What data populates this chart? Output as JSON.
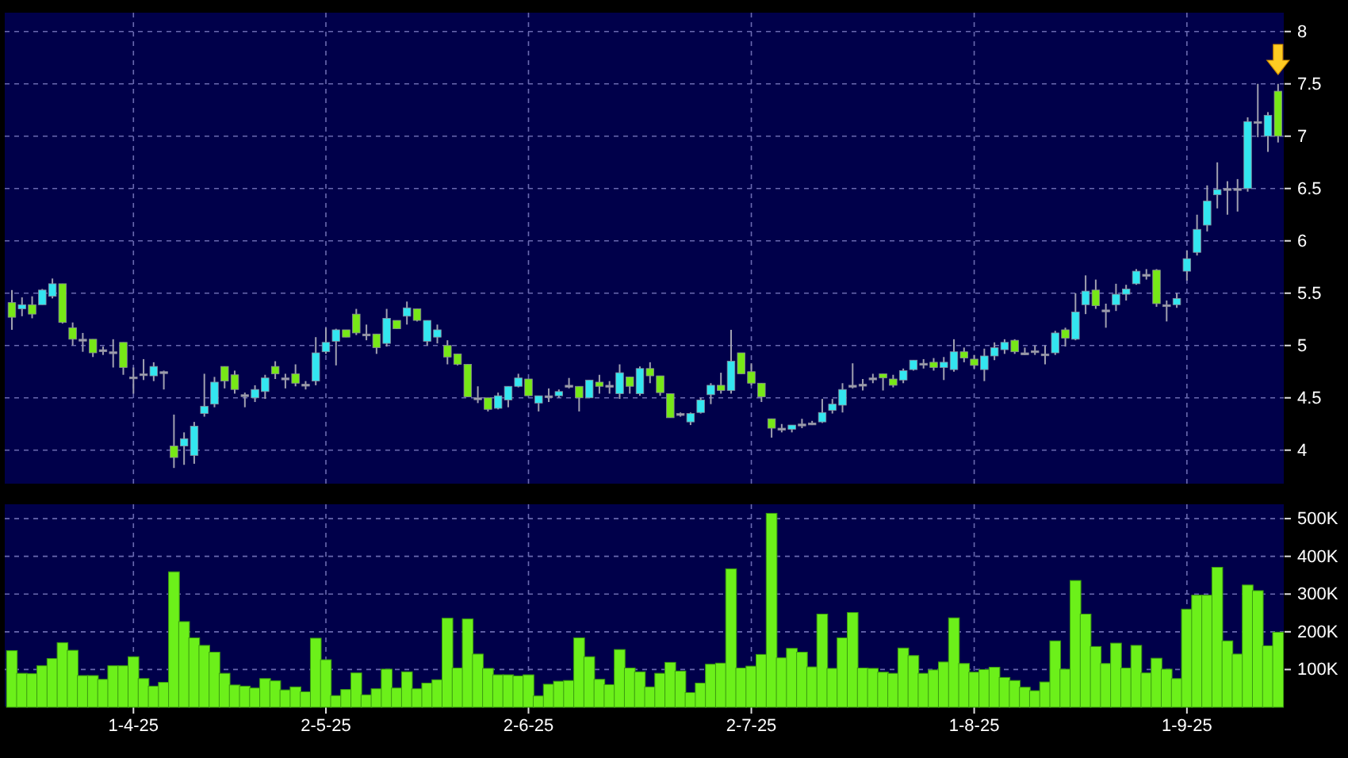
{
  "chart_data": [
    {
      "type": "candlestick",
      "categories": [
        null,
        null,
        null,
        null,
        null,
        null,
        null,
        null,
        null,
        null,
        null,
        null,
        null,
        null,
        null,
        null,
        null,
        null,
        null,
        null,
        null,
        null,
        null,
        null,
        null,
        null,
        null,
        null,
        null,
        null,
        null,
        null,
        null,
        null,
        null,
        null,
        null,
        null,
        null,
        null,
        null,
        null,
        null,
        null,
        null,
        null,
        null,
        null,
        null,
        null,
        null,
        null,
        null,
        null,
        null,
        null,
        null,
        null,
        null,
        null,
        null,
        null,
        null,
        null,
        null,
        null,
        null,
        null,
        null,
        null,
        null,
        null,
        null,
        null,
        null,
        null,
        null,
        null,
        null,
        null,
        null,
        null,
        null,
        null,
        null,
        null,
        null,
        null,
        null,
        null,
        null,
        null,
        null,
        null,
        null,
        null,
        null,
        null,
        null,
        null,
        null,
        null,
        null,
        null,
        null,
        null,
        null,
        null,
        null,
        null,
        null,
        null,
        null,
        null,
        null,
        null,
        null,
        null,
        null,
        null,
        null,
        null,
        null,
        null,
        null,
        null
      ],
      "ohlc": [
        [
          5.41,
          5.53,
          5.15,
          5.27
        ],
        [
          5.35,
          5.46,
          5.28,
          5.39
        ],
        [
          5.39,
          5.47,
          5.26,
          5.3
        ],
        [
          5.39,
          5.54,
          5.39,
          5.53
        ],
        [
          5.47,
          5.64,
          5.45,
          5.59
        ],
        [
          5.59,
          5.59,
          5.21,
          5.22
        ],
        [
          5.17,
          5.22,
          5.0,
          5.06
        ],
        [
          5.06,
          5.12,
          4.94,
          5.06
        ],
        [
          5.06,
          5.06,
          4.89,
          4.93
        ],
        [
          4.96,
          4.99,
          4.91,
          4.96
        ],
        [
          4.94,
          5.06,
          4.79,
          4.94
        ],
        [
          5.03,
          5.03,
          4.72,
          4.79
        ],
        [
          4.7,
          4.79,
          4.54,
          4.7
        ],
        [
          4.73,
          4.87,
          4.67,
          4.73
        ],
        [
          4.71,
          4.84,
          4.66,
          4.8
        ],
        [
          4.75,
          4.76,
          4.58,
          4.75
        ],
        [
          4.04,
          4.34,
          3.83,
          3.93
        ],
        [
          4.04,
          4.17,
          3.86,
          4.11
        ],
        [
          3.95,
          4.27,
          3.87,
          4.23
        ],
        [
          4.35,
          4.73,
          4.32,
          4.42
        ],
        [
          4.44,
          4.7,
          4.41,
          4.65
        ],
        [
          4.8,
          4.8,
          4.59,
          4.66
        ],
        [
          4.72,
          4.76,
          4.54,
          4.58
        ],
        [
          4.53,
          4.55,
          4.41,
          4.53
        ],
        [
          4.5,
          4.62,
          4.46,
          4.58
        ],
        [
          4.56,
          4.72,
          4.49,
          4.69
        ],
        [
          4.8,
          4.85,
          4.68,
          4.73
        ],
        [
          4.69,
          4.73,
          4.59,
          4.69
        ],
        [
          4.73,
          4.82,
          4.61,
          4.64
        ],
        [
          4.63,
          4.66,
          4.58,
          4.63
        ],
        [
          4.66,
          5.08,
          4.62,
          4.93
        ],
        [
          4.94,
          5.17,
          4.92,
          5.03
        ],
        [
          5.04,
          5.16,
          4.81,
          5.15
        ],
        [
          5.15,
          5.15,
          5.08,
          5.08
        ],
        [
          5.3,
          5.35,
          5.1,
          5.12
        ],
        [
          5.11,
          5.2,
          5.05,
          5.11
        ],
        [
          5.11,
          5.11,
          4.92,
          4.98
        ],
        [
          5.02,
          5.35,
          4.99,
          5.26
        ],
        [
          5.24,
          5.24,
          5.16,
          5.16
        ],
        [
          5.28,
          5.42,
          5.2,
          5.36
        ],
        [
          5.35,
          5.35,
          5.23,
          5.24
        ],
        [
          5.04,
          5.24,
          5.0,
          5.24
        ],
        [
          5.08,
          5.2,
          5.02,
          5.15
        ],
        [
          5.0,
          5.05,
          4.82,
          4.89
        ],
        [
          4.92,
          4.92,
          4.81,
          4.82
        ],
        [
          4.82,
          4.82,
          4.51,
          4.51
        ],
        [
          4.5,
          4.61,
          4.45,
          4.5
        ],
        [
          4.5,
          4.5,
          4.37,
          4.39
        ],
        [
          4.4,
          4.55,
          4.39,
          4.52
        ],
        [
          4.48,
          4.61,
          4.41,
          4.61
        ],
        [
          4.61,
          4.73,
          4.6,
          4.69
        ],
        [
          4.68,
          4.68,
          4.52,
          4.52
        ],
        [
          4.45,
          4.52,
          4.37,
          4.52
        ],
        [
          4.52,
          4.59,
          4.46,
          4.52
        ],
        [
          4.52,
          4.58,
          4.5,
          4.56
        ],
        [
          4.62,
          4.69,
          4.59,
          4.62
        ],
        [
          4.61,
          4.61,
          4.37,
          4.5
        ],
        [
          4.5,
          4.67,
          4.5,
          4.67
        ],
        [
          4.65,
          4.72,
          4.54,
          4.61
        ],
        [
          4.62,
          4.66,
          4.54,
          4.62
        ],
        [
          4.54,
          4.82,
          4.49,
          4.74
        ],
        [
          4.7,
          4.7,
          4.54,
          4.61
        ],
        [
          4.54,
          4.8,
          4.52,
          4.78
        ],
        [
          4.78,
          4.84,
          4.64,
          4.71
        ],
        [
          4.71,
          4.71,
          4.52,
          4.55
        ],
        [
          4.54,
          4.54,
          4.31,
          4.31
        ],
        [
          4.35,
          4.36,
          4.32,
          4.35
        ],
        [
          4.27,
          4.36,
          4.24,
          4.35
        ],
        [
          4.36,
          4.5,
          4.35,
          4.48
        ],
        [
          4.53,
          4.64,
          4.44,
          4.62
        ],
        [
          4.62,
          4.74,
          4.54,
          4.57
        ],
        [
          4.57,
          5.15,
          4.54,
          4.85
        ],
        [
          4.93,
          4.93,
          4.73,
          4.73
        ],
        [
          4.75,
          4.83,
          4.62,
          4.64
        ],
        [
          4.64,
          4.64,
          4.46,
          4.51
        ],
        [
          4.3,
          4.3,
          4.12,
          4.21
        ],
        [
          4.21,
          4.25,
          4.17,
          4.21
        ],
        [
          4.2,
          4.24,
          4.17,
          4.24
        ],
        [
          4.25,
          4.3,
          4.21,
          4.25
        ],
        [
          4.26,
          4.28,
          4.24,
          4.26
        ],
        [
          4.27,
          4.49,
          4.26,
          4.36
        ],
        [
          4.38,
          4.49,
          4.35,
          4.44
        ],
        [
          4.43,
          4.64,
          4.36,
          4.58
        ],
        [
          4.62,
          4.83,
          4.59,
          4.62
        ],
        [
          4.63,
          4.68,
          4.57,
          4.63
        ],
        [
          4.69,
          4.73,
          4.64,
          4.69
        ],
        [
          4.73,
          4.73,
          4.57,
          4.69
        ],
        [
          4.68,
          4.72,
          4.6,
          4.62
        ],
        [
          4.67,
          4.78,
          4.64,
          4.76
        ],
        [
          4.77,
          4.86,
          4.76,
          4.86
        ],
        [
          4.83,
          4.87,
          4.78,
          4.83
        ],
        [
          4.84,
          4.88,
          4.76,
          4.79
        ],
        [
          4.79,
          4.89,
          4.67,
          4.84
        ],
        [
          4.77,
          5.06,
          4.75,
          4.94
        ],
        [
          4.94,
          4.98,
          4.84,
          4.88
        ],
        [
          4.87,
          4.91,
          4.78,
          4.81
        ],
        [
          4.77,
          4.97,
          4.66,
          4.9
        ],
        [
          4.9,
          5.03,
          4.86,
          4.98
        ],
        [
          4.96,
          5.06,
          4.92,
          5.03
        ],
        [
          5.05,
          5.06,
          4.92,
          4.94
        ],
        [
          4.93,
          4.98,
          4.91,
          4.93
        ],
        [
          4.95,
          5.0,
          4.91,
          4.95
        ],
        [
          4.92,
          5.0,
          4.82,
          4.92
        ],
        [
          4.93,
          5.14,
          4.91,
          5.12
        ],
        [
          5.15,
          5.17,
          4.99,
          5.07
        ],
        [
          5.06,
          5.5,
          5.05,
          5.32
        ],
        [
          5.39,
          5.67,
          5.3,
          5.52
        ],
        [
          5.53,
          5.63,
          5.35,
          5.38
        ],
        [
          5.34,
          5.4,
          5.17,
          5.34
        ],
        [
          5.39,
          5.59,
          5.33,
          5.49
        ],
        [
          5.49,
          5.58,
          5.43,
          5.54
        ],
        [
          5.59,
          5.73,
          5.58,
          5.71
        ],
        [
          5.68,
          5.73,
          5.63,
          5.68
        ],
        [
          5.72,
          5.73,
          5.37,
          5.4
        ],
        [
          5.39,
          5.43,
          5.23,
          5.39
        ],
        [
          5.39,
          5.5,
          5.36,
          5.45
        ],
        [
          5.71,
          5.91,
          5.62,
          5.83
        ],
        [
          5.89,
          6.25,
          5.86,
          6.11
        ],
        [
          6.15,
          6.53,
          6.09,
          6.38
        ],
        [
          6.44,
          6.75,
          6.31,
          6.49
        ],
        [
          6.5,
          6.57,
          6.25,
          6.5
        ],
        [
          6.5,
          6.59,
          6.28,
          6.5
        ],
        [
          6.5,
          7.18,
          6.47,
          7.14
        ],
        [
          7.14,
          7.5,
          6.99,
          7.14
        ],
        [
          7.0,
          7.23,
          6.85,
          7.2
        ],
        [
          7.43,
          7.5,
          6.94,
          7.0
        ]
      ],
      "colors": [
        "#77e817",
        "#33e6f0",
        "#77e817",
        "#33e6f0",
        "#33e6f0",
        "#77e817",
        "#77e817",
        "#a0a0b0",
        "#77e817",
        "#a0a0b0",
        "#a0a0b0",
        "#77e817",
        "#a0a0b0",
        "#a0a0b0",
        "#33e6f0",
        "#a0a0b0",
        "#77e817",
        "#33e6f0",
        "#33e6f0",
        "#33e6f0",
        "#33e6f0",
        "#77e817",
        "#77e817",
        "#a0a0b0",
        "#33e6f0",
        "#33e6f0",
        "#77e817",
        "#a0a0b0",
        "#77e817",
        "#a0a0b0",
        "#33e6f0",
        "#33e6f0",
        "#33e6f0",
        "#77e817",
        "#77e817",
        "#a0a0b0",
        "#77e817",
        "#33e6f0",
        "#77e817",
        "#33e6f0",
        "#77e817",
        "#33e6f0",
        "#33e6f0",
        "#77e817",
        "#77e817",
        "#77e817",
        "#a0a0b0",
        "#77e817",
        "#33e6f0",
        "#33e6f0",
        "#33e6f0",
        "#77e817",
        "#33e6f0",
        "#a0a0b0",
        "#33e6f0",
        "#a0a0b0",
        "#77e817",
        "#33e6f0",
        "#77e817",
        "#a0a0b0",
        "#33e6f0",
        "#77e817",
        "#33e6f0",
        "#77e817",
        "#77e817",
        "#77e817",
        "#a0a0b0",
        "#33e6f0",
        "#33e6f0",
        "#33e6f0",
        "#77e817",
        "#33e6f0",
        "#77e817",
        "#77e817",
        "#77e817",
        "#77e817",
        "#a0a0b0",
        "#33e6f0",
        "#a0a0b0",
        "#a0a0b0",
        "#33e6f0",
        "#33e6f0",
        "#33e6f0",
        "#a0a0b0",
        "#a0a0b0",
        "#a0a0b0",
        "#77e817",
        "#77e817",
        "#33e6f0",
        "#33e6f0",
        "#a0a0b0",
        "#77e817",
        "#33e6f0",
        "#33e6f0",
        "#77e817",
        "#77e817",
        "#33e6f0",
        "#33e6f0",
        "#33e6f0",
        "#77e817",
        "#a0a0b0",
        "#a0a0b0",
        "#a0a0b0",
        "#33e6f0",
        "#77e817",
        "#33e6f0",
        "#33e6f0",
        "#77e817",
        "#a0a0b0",
        "#33e6f0",
        "#33e6f0",
        "#33e6f0",
        "#a0a0b0",
        "#77e817",
        "#a0a0b0",
        "#33e6f0",
        "#33e6f0",
        "#33e6f0",
        "#33e6f0",
        "#33e6f0",
        "#a0a0b0",
        "#a0a0b0",
        "#33e6f0",
        "#a0a0b0",
        "#33e6f0",
        "#77e817"
      ],
      "ylim": [
        3.68,
        8.18
      ],
      "yticks": [
        4,
        4.5,
        5,
        5.5,
        6,
        6.5,
        7,
        7.5,
        8
      ],
      "grid": true,
      "tick_labels": "y"
    },
    {
      "type": "bar",
      "categories": [
        null,
        null,
        null,
        null,
        null,
        null,
        null,
        null,
        null,
        null,
        null,
        null,
        "1-4-25",
        null,
        null,
        null,
        null,
        null,
        null,
        null,
        null,
        null,
        null,
        null,
        null,
        null,
        null,
        null,
        null,
        null,
        null,
        "2-5-25",
        null,
        null,
        null,
        null,
        null,
        null,
        null,
        null,
        null,
        null,
        null,
        null,
        null,
        null,
        null,
        null,
        null,
        null,
        null,
        "2-6-25",
        null,
        null,
        null,
        null,
        null,
        null,
        null,
        null,
        null,
        null,
        null,
        null,
        null,
        null,
        null,
        null,
        null,
        null,
        null,
        null,
        null,
        "2-7-25",
        null,
        null,
        null,
        null,
        null,
        null,
        null,
        null,
        null,
        null,
        null,
        null,
        null,
        null,
        null,
        null,
        null,
        null,
        null,
        null,
        null,
        "1-8-25",
        null,
        null,
        null,
        null,
        null,
        null,
        null,
        null,
        null,
        null,
        null,
        null,
        null,
        null,
        null,
        null,
        null,
        null,
        null,
        null,
        "1-9-25",
        null,
        null,
        null,
        null,
        null,
        null,
        null,
        null,
        null
      ],
      "values": [
        150000,
        90000,
        89000,
        110000,
        129000,
        171000,
        151000,
        84000,
        84000,
        74000,
        110000,
        110000,
        134000,
        76000,
        56000,
        66000,
        359000,
        227000,
        184000,
        164000,
        146000,
        90000,
        59000,
        56000,
        51000,
        76000,
        70000,
        46000,
        54000,
        41000,
        183000,
        126000,
        31000,
        47000,
        91000,
        33000,
        49000,
        101000,
        51000,
        94000,
        49000,
        64000,
        73000,
        236000,
        104000,
        234000,
        141000,
        103000,
        86000,
        86000,
        83000,
        86000,
        30000,
        61000,
        69000,
        71000,
        184000,
        134000,
        74000,
        60000,
        153000,
        104000,
        94000,
        54000,
        90000,
        119000,
        96000,
        39000,
        64000,
        114000,
        117000,
        367000,
        104000,
        109000,
        140000,
        514000,
        131000,
        156000,
        146000,
        107000,
        247000,
        103000,
        184000,
        251000,
        104000,
        103000,
        93000,
        90000,
        157000,
        137000,
        90000,
        99000,
        120000,
        237000,
        116000,
        93000,
        100000,
        106000,
        79000,
        71000,
        53000,
        44000,
        67000,
        176000,
        101000,
        336000,
        247000,
        161000,
        116000,
        170000,
        104000,
        164000,
        91000,
        130000,
        101000,
        76000,
        260000,
        297000,
        297000,
        371000,
        176000,
        141000,
        324000,
        309000,
        163000,
        199000
      ],
      "color": "#6cf01a",
      "ylim": [
        0,
        538000
      ],
      "yticks": [
        {
          "value": 100000,
          "label": "100K"
        },
        {
          "value": 200000,
          "label": "200K"
        },
        {
          "value": 300000,
          "label": "300K"
        },
        {
          "value": 400000,
          "label": "400K"
        },
        {
          "value": 500000,
          "label": "500K"
        }
      ],
      "grid": true
    }
  ]
}
